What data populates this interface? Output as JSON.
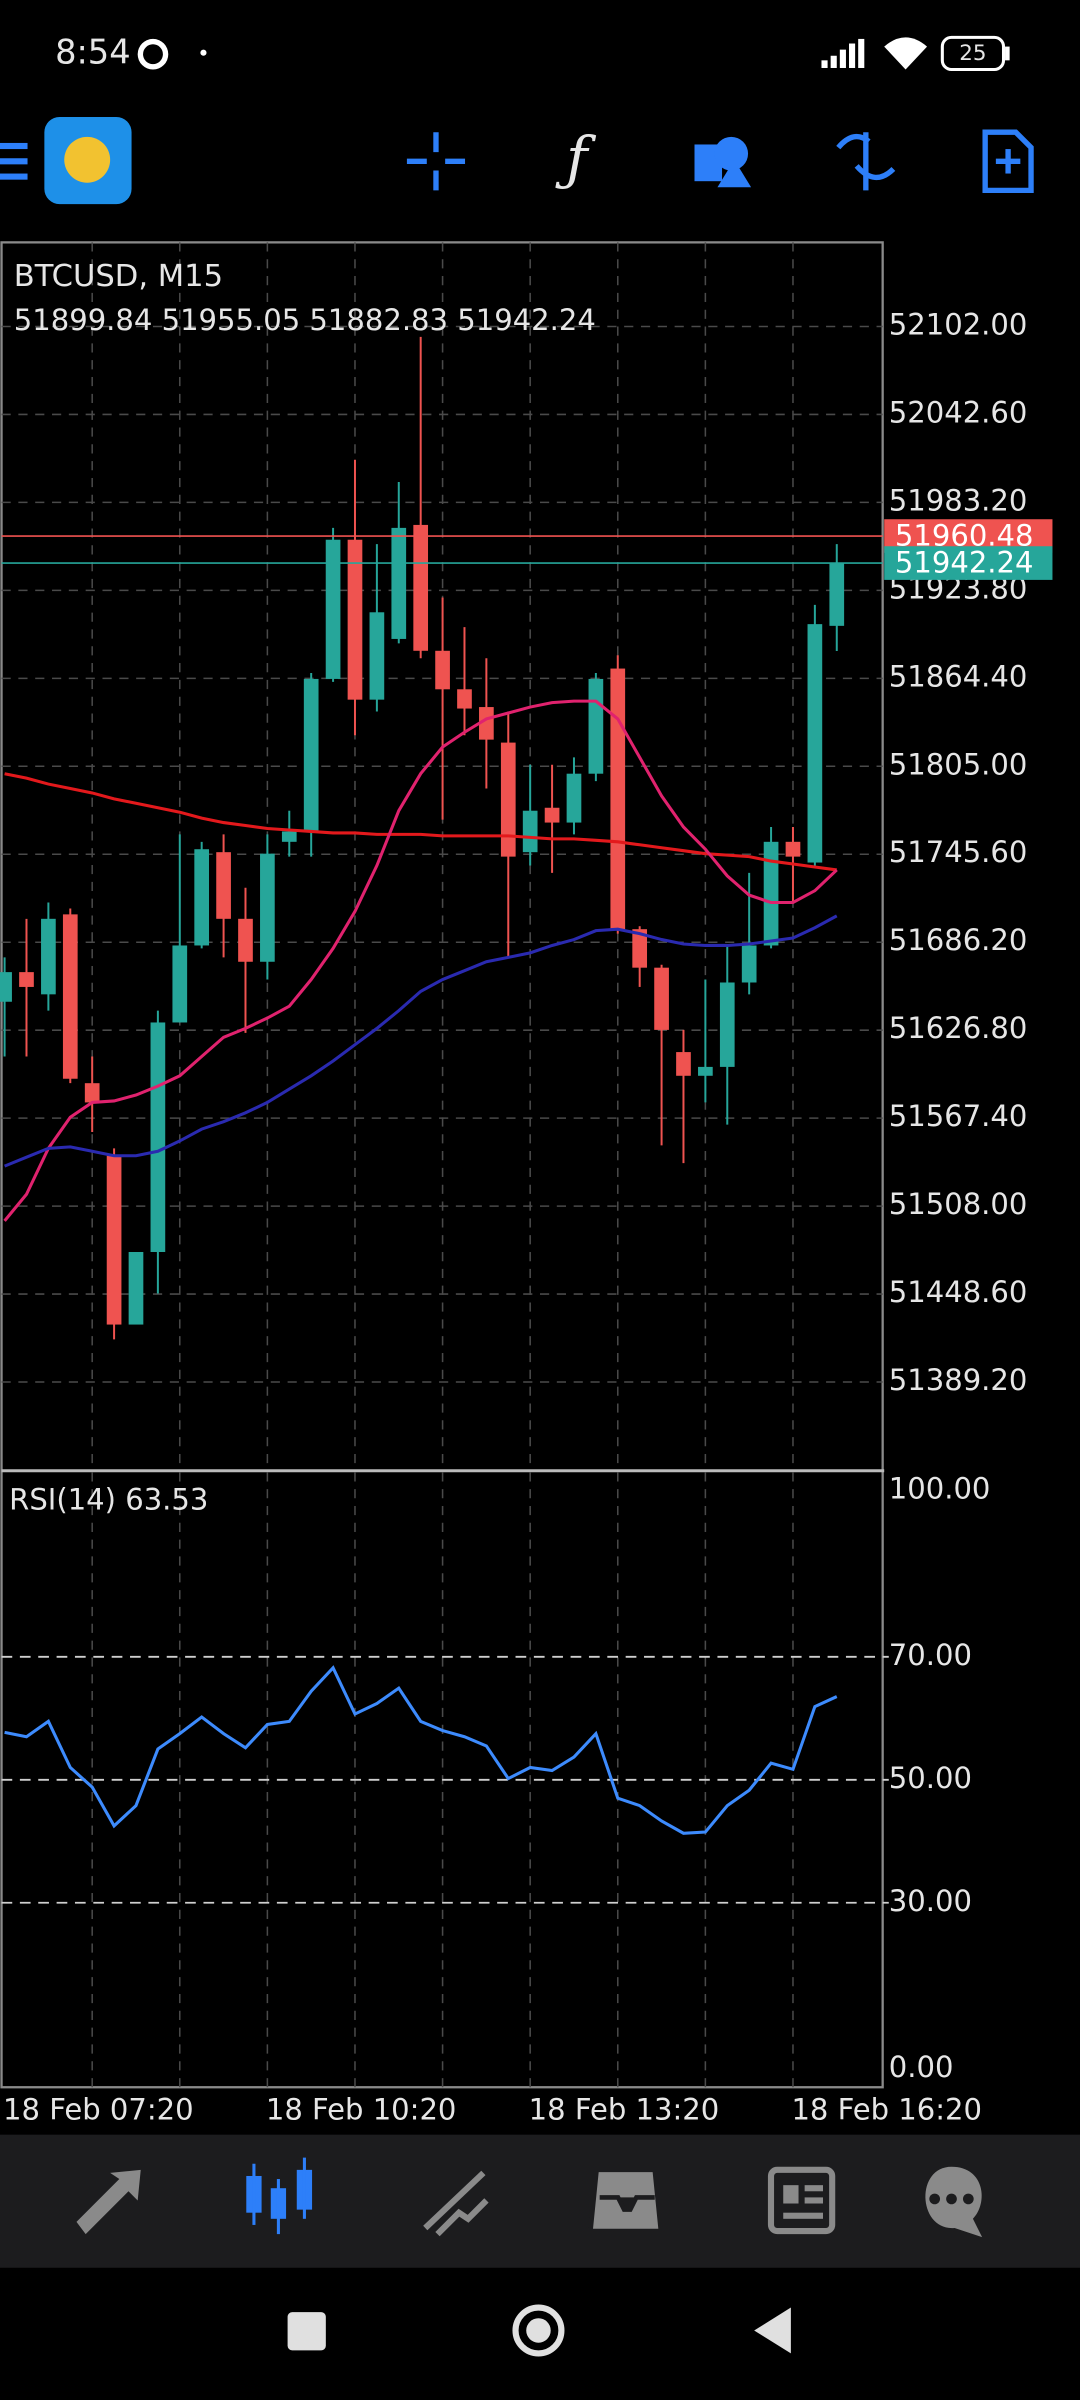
{
  "status_bar": {
    "time": "8:54",
    "battery": "25"
  },
  "chart_data": [
    {
      "type": "candlestick",
      "title": "BTCUSD, M15",
      "subtitle": "51899.84 51955.05 51882.83 51942.24",
      "categories": [
        "18 Feb 07:20",
        null,
        null,
        null,
        null,
        null,
        null,
        null,
        null,
        null,
        null,
        null,
        "18 Feb 10:20",
        null,
        null,
        null,
        null,
        null,
        null,
        null,
        null,
        null,
        null,
        null,
        "18 Feb 13:20",
        null,
        null,
        null,
        null,
        null,
        null,
        null,
        null,
        null,
        null,
        null,
        "18 Feb 16:20",
        null,
        null
      ],
      "open": [
        51646,
        51666,
        51651,
        51705,
        51591,
        51542,
        51428,
        51477,
        51632,
        51684,
        51747,
        51702,
        51673,
        51754,
        51761,
        51864,
        51958,
        51850,
        51891,
        51968,
        51883,
        51857,
        51845,
        51821,
        51747,
        51777,
        51767,
        51800,
        51871,
        51695,
        51669,
        51612,
        51596,
        51602,
        51659,
        51684,
        51754,
        51740,
        51899.84
      ],
      "high": [
        51676,
        51702,
        51713,
        51709,
        51609,
        51547,
        51477,
        51640,
        51759,
        51754,
        51759,
        51723,
        51759,
        51775,
        51868,
        51966,
        52012,
        51955,
        51997,
        52095,
        51919,
        51899,
        51878,
        51842,
        51806,
        51806,
        51811,
        51868,
        51880,
        51697,
        51671,
        51627,
        51661,
        51684,
        51733,
        51764,
        51764,
        51914,
        51955.05
      ],
      "low": [
        51609,
        51609,
        51640,
        51591,
        51558,
        51418,
        51428,
        51449,
        51632,
        51682,
        51676,
        51625,
        51661,
        51744,
        51744,
        51862,
        51826,
        51842,
        51888,
        51878,
        51769,
        51826,
        51790,
        51676,
        51738,
        51733,
        51759,
        51795,
        51692,
        51656,
        51549,
        51537,
        51578,
        51563,
        51651,
        51682,
        51713,
        51738,
        51882.83
      ],
      "close": [
        51666,
        51656,
        51702,
        51594,
        51578,
        51428,
        51477,
        51632,
        51684,
        51749,
        51702,
        51673,
        51746,
        51761,
        51864,
        51958,
        51850,
        51909,
        51966,
        51883,
        51857,
        51844,
        51823,
        51744,
        51775,
        51767,
        51800,
        51864,
        51695,
        51669,
        51627,
        51596,
        51602,
        51659,
        51684,
        51754,
        51744,
        51901,
        51942.24
      ],
      "up_color": "#26a69a",
      "down_color": "#ef5350",
      "lines": [
        {
          "color": "#e3191c",
          "values": [
            51800,
            51797,
            51793,
            51790,
            51787,
            51783,
            51780,
            51777,
            51774,
            51770,
            51767,
            51765,
            51763,
            51762,
            51761,
            51760,
            51760,
            51759,
            51759,
            51759,
            51758,
            51758,
            51758,
            51758,
            51757,
            51756,
            51756,
            51755,
            51754,
            51752,
            51750,
            51748,
            51746,
            51745,
            51744,
            51741,
            51739,
            51737,
            51735
          ]
        },
        {
          "color": "#e0226e",
          "values": [
            51498,
            51516,
            51547,
            51568,
            51578,
            51579,
            51583,
            51589,
            51596,
            51609,
            51622,
            51628,
            51635,
            51643,
            51661,
            51682,
            51707,
            51738,
            51775,
            51800,
            51818,
            51828,
            51837,
            51841,
            51845,
            51848,
            51849,
            51849,
            51837,
            51811,
            51785,
            51764,
            51749,
            51731,
            51718,
            51713,
            51713,
            51721,
            51735
          ]
        },
        {
          "color": "#2a2ab0",
          "values": [
            51535,
            51541,
            51547,
            51548,
            51545,
            51542,
            51542,
            51545,
            51552,
            51560,
            51565,
            51571,
            51578,
            51587,
            51596,
            51606,
            51617,
            51628,
            51640,
            51653,
            51661,
            51667,
            51673,
            51676,
            51679,
            51684,
            51688,
            51694,
            51695,
            51692,
            51688,
            51685,
            51684,
            51684,
            51685,
            51687,
            51689,
            51696,
            51704
          ]
        }
      ],
      "price_lines": [
        {
          "value": 51960.48,
          "color": "#ef5350"
        },
        {
          "value": 51942.24,
          "color": "#26a69a"
        }
      ],
      "ylim": [
        51330.3,
        52158.8
      ],
      "yticks": [
        {
          "value": 52102,
          "label": "52102.00"
        },
        {
          "value": 52042.6,
          "label": "52042.60"
        },
        {
          "value": 51983.2,
          "label": "51983.20"
        },
        {
          "value": 51923.8,
          "label": "51923.80"
        },
        {
          "value": 51864.4,
          "label": "51864.40"
        },
        {
          "value": 51805,
          "label": "51805.00"
        },
        {
          "value": 51745.6,
          "label": "51745.60"
        },
        {
          "value": 51686.2,
          "label": "51686.20"
        },
        {
          "value": 51626.8,
          "label": "51626.80"
        },
        {
          "value": 51567.4,
          "label": "51567.40"
        },
        {
          "value": 51508,
          "label": "51508.00"
        },
        {
          "value": 51448.6,
          "label": "51448.60"
        },
        {
          "value": 51389.2,
          "label": "51389.20"
        }
      ],
      "grid": true
    },
    {
      "type": "line",
      "title": "RSI(14) 63.53",
      "series": [
        {
          "color": "#3d8bfd",
          "values": [
            57.7,
            57.0,
            59.5,
            52.0,
            48.8,
            42.5,
            45.8,
            55.0,
            57.5,
            60.2,
            57.5,
            55.2,
            59.0,
            59.5,
            64.4,
            68.2,
            60.7,
            62.4,
            64.9,
            59.5,
            58.0,
            57.0,
            55.5,
            50.2,
            52.0,
            51.5,
            53.7,
            57.5,
            47.0,
            45.8,
            43.3,
            41.3,
            41.5,
            45.8,
            48.3,
            52.7,
            51.7,
            61.9,
            63.53
          ]
        }
      ],
      "ylim": [
        0,
        100
      ],
      "yticks": [
        {
          "value": 100,
          "label": "100.00"
        },
        {
          "value": 70,
          "label": "70.00"
        },
        {
          "value": 50,
          "label": "50.00"
        },
        {
          "value": 30,
          "label": "30.00"
        },
        {
          "value": 0,
          "label": "0.00"
        }
      ],
      "levels": [
        70,
        50,
        30
      ]
    }
  ]
}
